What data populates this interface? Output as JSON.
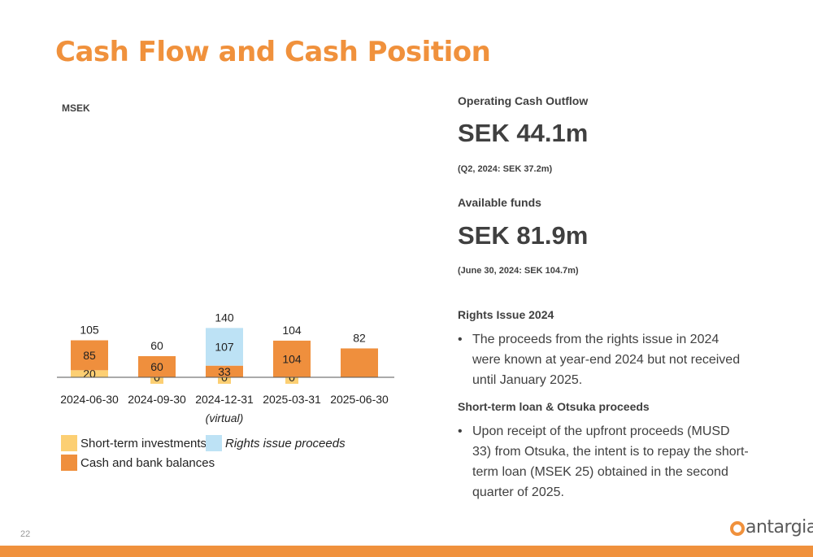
{
  "page": {
    "title": "Cash Flow and Cash Position",
    "page_number": "22",
    "logo_text": "antargia",
    "colors": {
      "accent": "#f0913c",
      "cash": "#ef8f3d",
      "short_term": "#fccf73",
      "rights": "#bde2f5"
    }
  },
  "chart_data": {
    "type": "bar",
    "stacked": true,
    "ylabel": "MSEK",
    "categories": [
      "2024-06-30",
      "2024-09-30",
      "2024-12-31",
      "2025-03-31",
      "2025-06-30"
    ],
    "category_sublabels": [
      "",
      "",
      "(virtual)",
      "",
      ""
    ],
    "series": [
      {
        "name": "Short-term investments",
        "key": "short_term",
        "values": [
          20,
          0,
          0,
          0,
          null
        ],
        "labels": [
          "20",
          "0",
          "0",
          "0",
          ""
        ]
      },
      {
        "name": "Cash and bank balances",
        "key": "cash",
        "values": [
          85,
          60,
          33,
          104,
          82
        ],
        "labels": [
          "85",
          "60",
          "33",
          "104",
          ""
        ]
      },
      {
        "name": "Rights issue proceeds",
        "key": "rights",
        "values": [
          0,
          0,
          107,
          0,
          0
        ],
        "labels": [
          "",
          "",
          "107",
          "",
          ""
        ]
      }
    ],
    "totals": [
      "105",
      "60",
      "140",
      "104",
      "82"
    ],
    "ylim": [
      0,
      145
    ]
  },
  "legend": {
    "short_term": "Short-term investments",
    "rights": "Rights issue proceeds",
    "cash": "Cash and bank balances"
  },
  "right": {
    "op_label": "Operating Cash Outflow",
    "op_value": "SEK 44.1m",
    "op_note": "(Q2, 2024: SEK 37.2m)",
    "funds_label": "Available funds",
    "funds_value": "SEK 81.9m",
    "funds_note": "(June 30, 2024: SEK 104.7m)",
    "rights_heading": "Rights Issue 2024",
    "rights_bullet": "The proceeds from the rights issue in 2024 were known at year-end 2024 but not received until January 2025.",
    "loan_heading": "Short-term loan & Otsuka proceeds",
    "loan_bullet": "Upon receipt of the upfront proceeds (MUSD 33) from Otsuka, the intent is to repay the short-term loan (MSEK 25) obtained in the second quarter of 2025.",
    "bullet_char": "•"
  }
}
